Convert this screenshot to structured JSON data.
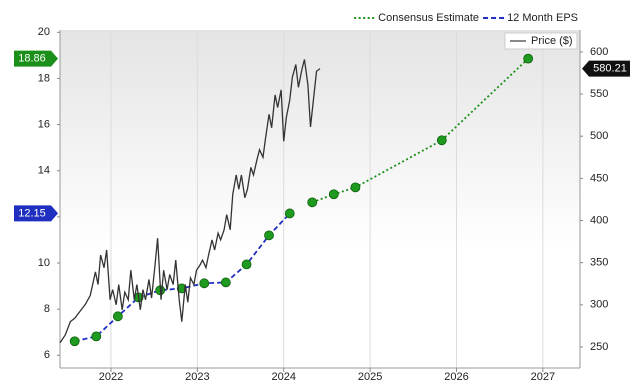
{
  "chart_data": {
    "type": "line",
    "legend": "top-right",
    "grid": "x",
    "xlim": [
      2021.41,
      2027.43
    ],
    "xticks": [
      2022,
      2023,
      2024,
      2025,
      2026,
      2027
    ],
    "ylim": [
      5.45,
      20.1
    ],
    "yticks": [
      6,
      8,
      10,
      12,
      14,
      16,
      18,
      20
    ],
    "y2lim": [
      225,
      626
    ],
    "y2ticks": [
      250,
      300,
      350,
      400,
      450,
      500,
      550,
      600
    ],
    "series": [
      {
        "name": "Consensus Estimate",
        "color": "#1a8f1a",
        "line_style": "dotted",
        "markers": true,
        "marker_color": "#1e9a1e",
        "x": [
          2024.33,
          2024.58,
          2024.83,
          2025.83,
          2026.83
        ],
        "values": [
          12.63,
          12.98,
          13.28,
          15.32,
          18.86
        ]
      },
      {
        "name": "12 Month EPS",
        "color": "#1f2fbf",
        "line_style": "dashed",
        "markers": true,
        "marker_color": "#1e9a1e",
        "x": [
          2021.58,
          2021.83,
          2022.08,
          2022.32,
          2022.57,
          2022.82,
          2023.08,
          2023.33,
          2023.57,
          2023.83,
          2024.07
        ],
        "values": [
          6.61,
          6.82,
          7.69,
          8.51,
          8.82,
          8.9,
          9.12,
          9.16,
          9.94,
          11.2,
          12.15
        ]
      },
      {
        "name": "Price ($)",
        "color": "#333333",
        "legend_color": "#888888",
        "line_style": "solid",
        "markers": false,
        "axis": "y2",
        "x": [
          2021.41,
          2021.47,
          2021.53,
          2021.58,
          2021.64,
          2021.7,
          2021.76,
          2021.82,
          2021.85,
          2021.88,
          2021.92,
          2021.95,
          2021.99,
          2022.02,
          2022.06,
          2022.09,
          2022.13,
          2022.16,
          2022.2,
          2022.23,
          2022.27,
          2022.3,
          2022.34,
          2022.37,
          2022.4,
          2022.44,
          2022.47,
          2022.51,
          2022.54,
          2022.58,
          2022.61,
          2022.65,
          2022.68,
          2022.72,
          2022.75,
          2022.79,
          2022.82,
          2022.86,
          2022.89,
          2022.92,
          2022.96,
          2022.99,
          2023.03,
          2023.06,
          2023.1,
          2023.13,
          2023.17,
          2023.2,
          2023.24,
          2023.27,
          2023.31,
          2023.34,
          2023.38,
          2023.41,
          2023.45,
          2023.48,
          2023.51,
          2023.55,
          2023.58,
          2023.62,
          2023.65,
          2023.69,
          2023.72,
          2023.76,
          2023.79,
          2023.83,
          2023.86,
          2023.9,
          2023.93,
          2023.97,
          2024.0,
          2024.03,
          2024.07,
          2024.1,
          2024.14,
          2024.17,
          2024.21,
          2024.24,
          2024.28,
          2024.31,
          2024.35,
          2024.38,
          2024.42
        ],
        "values": [
          255,
          264,
          280,
          284,
          292,
          300,
          311,
          339,
          324,
          359,
          344,
          365,
          306,
          318,
          300,
          324,
          294,
          315,
          306,
          341,
          306,
          324,
          294,
          318,
          306,
          330,
          308,
          347,
          379,
          306,
          341,
          318,
          336,
          324,
          353,
          306,
          280,
          324,
          303,
          332,
          324,
          341,
          347,
          353,
          344,
          359,
          377,
          365,
          385,
          377,
          389,
          407,
          389,
          431,
          454,
          437,
          454,
          427,
          437,
          463,
          454,
          472,
          484,
          475,
          498,
          526,
          510,
          549,
          534,
          555,
          494,
          522,
          543,
          570,
          585,
          558,
          579,
          591,
          561,
          511,
          549,
          577,
          580.21
        ]
      }
    ]
  }
}
